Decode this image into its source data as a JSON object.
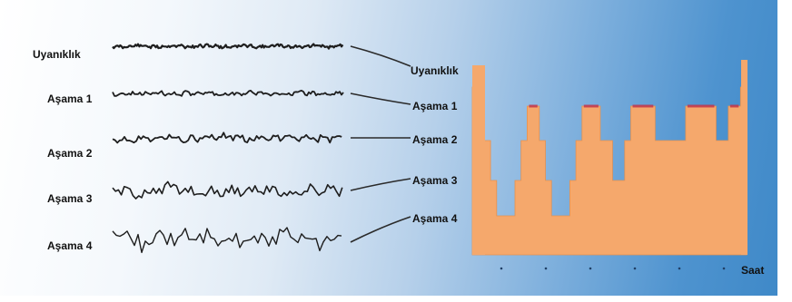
{
  "left_labels": [
    "Uyanıklık",
    "Aşama 1",
    "Aşama 2",
    "Aşama 3",
    "Aşama 4"
  ],
  "right_labels": [
    "Uyanıklık",
    "Aşama 1",
    "Aşama 2",
    "Aşama 3",
    "Aşama 4"
  ],
  "x_axis_label": "Saat",
  "colors": {
    "hypnogram_fill": "#f5a86c",
    "hypnogram_edge": "#e6914f",
    "rem_marker": "#c0304a",
    "wave_ink": "#1e1e1e",
    "connector_line": "#2a2a2a"
  },
  "hypnogram": {
    "hours_ticks": 6,
    "stage_levels": [
      "Uyanıklık",
      "Aşama 1",
      "Aşama 2",
      "Aşama 3",
      "Aşama 4"
    ],
    "sequence": [
      0,
      1,
      2,
      3,
      4,
      4,
      4,
      3,
      2,
      1,
      1,
      2,
      3,
      4,
      4,
      4,
      3,
      2,
      1,
      1,
      1,
      2,
      2,
      3,
      3,
      2,
      1,
      1,
      1,
      1,
      2,
      2,
      2,
      2,
      2,
      1,
      1,
      1,
      1,
      1,
      2,
      2,
      1,
      1,
      0
    ]
  }
}
